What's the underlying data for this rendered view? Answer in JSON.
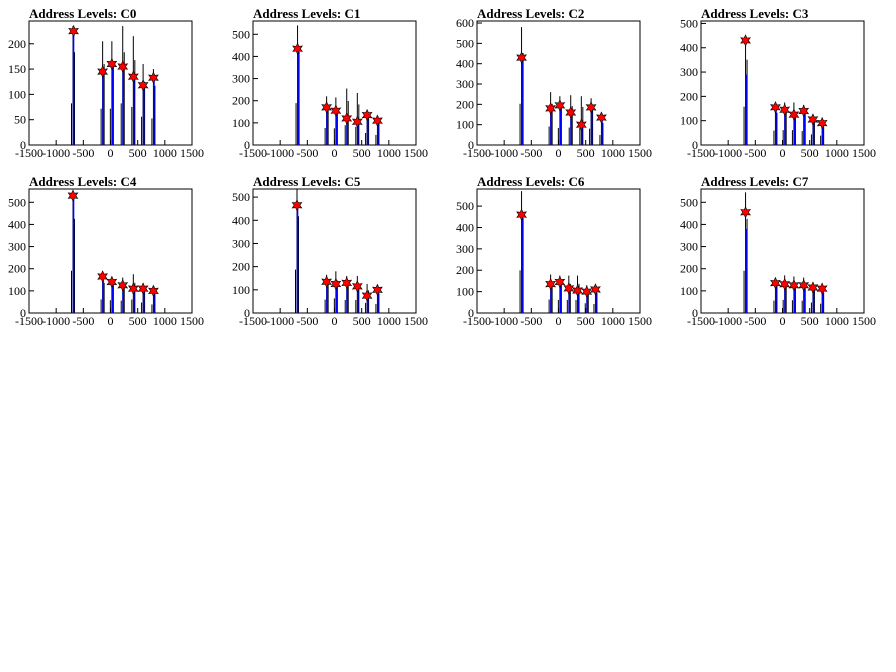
{
  "chart_data": [
    {
      "type": "histogram",
      "title": "Address Levels: C0",
      "xlim": [
        -1500,
        1500
      ],
      "xticks": [
        -1500,
        -1000,
        -500,
        0,
        500,
        1000,
        1500
      ],
      "ylim": [
        0,
        245
      ],
      "yticks": [
        0,
        50,
        100,
        150,
        200
      ],
      "spikes": [
        {
          "x": -690,
          "raw": 235,
          "fit": 230
        },
        {
          "x": -145,
          "raw": 205,
          "fit": 150
        },
        {
          "x": 25,
          "raw": 205,
          "fit": 165
        },
        {
          "x": 225,
          "raw": 235,
          "fit": 160
        },
        {
          "x": 420,
          "raw": 215,
          "fit": 140
        },
        {
          "x": 600,
          "raw": 160,
          "fit": 120
        },
        {
          "x": 790,
          "raw": 150,
          "fit": 140
        }
      ],
      "peaks": [
        {
          "x": -680,
          "y": 225
        },
        {
          "x": -145,
          "y": 145
        },
        {
          "x": 25,
          "y": 160
        },
        {
          "x": 225,
          "y": 155
        },
        {
          "x": 420,
          "y": 135
        },
        {
          "x": 600,
          "y": 118
        },
        {
          "x": 790,
          "y": 133
        }
      ]
    },
    {
      "type": "histogram",
      "title": "Address Levels: C1",
      "xlim": [
        -1500,
        1500
      ],
      "xticks": [
        -1500,
        -1000,
        -500,
        0,
        500,
        1000,
        1500
      ],
      "ylim": [
        0,
        560
      ],
      "yticks": [
        0,
        100,
        200,
        300,
        400,
        500
      ],
      "spikes": [
        {
          "x": -680,
          "raw": 540,
          "fit": 440
        },
        {
          "x": -145,
          "raw": 220,
          "fit": 175
        },
        {
          "x": 25,
          "raw": 215,
          "fit": 165
        },
        {
          "x": 225,
          "raw": 255,
          "fit": 125
        },
        {
          "x": 420,
          "raw": 235,
          "fit": 110
        },
        {
          "x": 600,
          "raw": 155,
          "fit": 140
        },
        {
          "x": 790,
          "raw": 130,
          "fit": 110
        }
      ],
      "peaks": [
        {
          "x": -680,
          "y": 435
        },
        {
          "x": -145,
          "y": 170
        },
        {
          "x": 25,
          "y": 155
        },
        {
          "x": 225,
          "y": 120
        },
        {
          "x": 420,
          "y": 105
        },
        {
          "x": 600,
          "y": 135
        },
        {
          "x": 790,
          "y": 110
        }
      ]
    },
    {
      "type": "histogram",
      "title": "Address Levels: C2",
      "xlim": [
        -1500,
        1500
      ],
      "xticks": [
        -1500,
        -1000,
        -500,
        0,
        500,
        1000,
        1500
      ],
      "ylim": [
        0,
        610
      ],
      "yticks": [
        0,
        100,
        200,
        300,
        400,
        500,
        600
      ],
      "spikes": [
        {
          "x": -680,
          "raw": 580,
          "fit": 440
        },
        {
          "x": -145,
          "raw": 260,
          "fit": 190
        },
        {
          "x": 25,
          "raw": 240,
          "fit": 200
        },
        {
          "x": 225,
          "raw": 245,
          "fit": 170
        },
        {
          "x": 420,
          "raw": 240,
          "fit": 105
        },
        {
          "x": 600,
          "raw": 230,
          "fit": 195
        },
        {
          "x": 790,
          "raw": 140,
          "fit": 140
        }
      ],
      "peaks": [
        {
          "x": -680,
          "y": 430
        },
        {
          "x": -145,
          "y": 180
        },
        {
          "x": 25,
          "y": 195
        },
        {
          "x": 225,
          "y": 160
        },
        {
          "x": 420,
          "y": 100
        },
        {
          "x": 600,
          "y": 185
        },
        {
          "x": 790,
          "y": 135
        }
      ]
    },
    {
      "type": "histogram",
      "title": "Address Levels: C3",
      "xlim": [
        -1500,
        1500
      ],
      "xticks": [
        -1500,
        -1000,
        -500,
        0,
        500,
        1000,
        1500
      ],
      "ylim": [
        0,
        510
      ],
      "yticks": [
        0,
        100,
        200,
        300,
        400,
        500
      ],
      "spikes": [
        {
          "x": -680,
          "raw": 450,
          "fit": 290
        },
        {
          "x": -130,
          "raw": 170,
          "fit": 160
        },
        {
          "x": 40,
          "raw": 175,
          "fit": 150
        },
        {
          "x": 210,
          "raw": 175,
          "fit": 130
        },
        {
          "x": 390,
          "raw": 165,
          "fit": 145
        },
        {
          "x": 560,
          "raw": 125,
          "fit": 110
        },
        {
          "x": 730,
          "raw": 110,
          "fit": 95
        }
      ],
      "peaks": [
        {
          "x": -680,
          "y": 430
        },
        {
          "x": -130,
          "y": 155
        },
        {
          "x": 40,
          "y": 145
        },
        {
          "x": 210,
          "y": 125
        },
        {
          "x": 390,
          "y": 140
        },
        {
          "x": 560,
          "y": 105
        },
        {
          "x": 730,
          "y": 90
        }
      ]
    },
    {
      "type": "histogram",
      "title": "Address Levels: C4",
      "xlim": [
        -1500,
        1500
      ],
      "xticks": [
        -1500,
        -1000,
        -500,
        0,
        500,
        1000,
        1500
      ],
      "ylim": [
        0,
        560
      ],
      "yticks": [
        0,
        100,
        200,
        300,
        400,
        500
      ],
      "spikes": [
        {
          "x": -690,
          "raw": 545,
          "fit": 545
        },
        {
          "x": -145,
          "raw": 175,
          "fit": 170
        },
        {
          "x": 25,
          "raw": 165,
          "fit": 140
        },
        {
          "x": 225,
          "raw": 160,
          "fit": 125
        },
        {
          "x": 420,
          "raw": 175,
          "fit": 110
        },
        {
          "x": 600,
          "raw": 135,
          "fit": 115
        },
        {
          "x": 790,
          "raw": 110,
          "fit": 95
        }
      ],
      "peaks": [
        {
          "x": -690,
          "y": 530
        },
        {
          "x": -145,
          "y": 165
        },
        {
          "x": 25,
          "y": 140
        },
        {
          "x": 225,
          "y": 125
        },
        {
          "x": 420,
          "y": 110
        },
        {
          "x": 600,
          "y": 110
        },
        {
          "x": 790,
          "y": 100
        }
      ]
    },
    {
      "type": "histogram",
      "title": "Address Levels: C5",
      "xlim": [
        -1500,
        1500
      ],
      "xticks": [
        -1500,
        -1000,
        -500,
        0,
        500,
        1000,
        1500
      ],
      "ylim": [
        0,
        535
      ],
      "yticks": [
        0,
        100,
        200,
        300,
        400,
        500
      ],
      "spikes": [
        {
          "x": -690,
          "raw": 535,
          "fit": 475
        },
        {
          "x": -145,
          "raw": 165,
          "fit": 135
        },
        {
          "x": 25,
          "raw": 180,
          "fit": 130
        },
        {
          "x": 225,
          "raw": 160,
          "fit": 130
        },
        {
          "x": 420,
          "raw": 160,
          "fit": 115
        },
        {
          "x": 600,
          "raw": 125,
          "fit": 80
        },
        {
          "x": 790,
          "raw": 110,
          "fit": 100
        }
      ],
      "peaks": [
        {
          "x": -690,
          "y": 465
        },
        {
          "x": -145,
          "y": 135
        },
        {
          "x": 25,
          "y": 125
        },
        {
          "x": 225,
          "y": 130
        },
        {
          "x": 420,
          "y": 115
        },
        {
          "x": 600,
          "y": 75
        },
        {
          "x": 790,
          "y": 100
        }
      ]
    },
    {
      "type": "histogram",
      "title": "Address Levels: C6",
      "xlim": [
        -1500,
        1500
      ],
      "xticks": [
        -1500,
        -1000,
        -500,
        0,
        500,
        1000,
        1500
      ],
      "ylim": [
        0,
        580
      ],
      "yticks": [
        0,
        100,
        200,
        300,
        400,
        500
      ],
      "spikes": [
        {
          "x": -680,
          "raw": 570,
          "fit": 470
        },
        {
          "x": -145,
          "raw": 180,
          "fit": 140
        },
        {
          "x": 25,
          "raw": 175,
          "fit": 150
        },
        {
          "x": 190,
          "raw": 175,
          "fit": 120
        },
        {
          "x": 350,
          "raw": 175,
          "fit": 110
        },
        {
          "x": 520,
          "raw": 130,
          "fit": 105
        },
        {
          "x": 680,
          "raw": 120,
          "fit": 115
        }
      ],
      "peaks": [
        {
          "x": -680,
          "y": 460
        },
        {
          "x": -145,
          "y": 135
        },
        {
          "x": 25,
          "y": 145
        },
        {
          "x": 190,
          "y": 115
        },
        {
          "x": 350,
          "y": 105
        },
        {
          "x": 520,
          "y": 100
        },
        {
          "x": 680,
          "y": 110
        }
      ]
    },
    {
      "type": "histogram",
      "title": "Address Levels: C7",
      "xlim": [
        -1500,
        1500
      ],
      "xticks": [
        -1500,
        -1000,
        -500,
        0,
        500,
        1000,
        1500
      ],
      "ylim": [
        0,
        560
      ],
      "yticks": [
        0,
        100,
        200,
        300,
        400,
        500
      ],
      "spikes": [
        {
          "x": -680,
          "raw": 545,
          "fit": 380
        },
        {
          "x": -130,
          "raw": 160,
          "fit": 140
        },
        {
          "x": 40,
          "raw": 170,
          "fit": 140
        },
        {
          "x": 210,
          "raw": 165,
          "fit": 130
        },
        {
          "x": 390,
          "raw": 160,
          "fit": 130
        },
        {
          "x": 560,
          "raw": 135,
          "fit": 125
        },
        {
          "x": 730,
          "raw": 120,
          "fit": 110
        }
      ],
      "peaks": [
        {
          "x": -680,
          "y": 455
        },
        {
          "x": -130,
          "y": 135
        },
        {
          "x": 40,
          "y": 130
        },
        {
          "x": 210,
          "y": 125
        },
        {
          "x": 390,
          "y": 125
        },
        {
          "x": 560,
          "y": 115
        },
        {
          "x": 730,
          "y": 110
        }
      ]
    }
  ],
  "colors": {
    "raw": "#000000",
    "fit": "#0000ff",
    "peak_fill": "#ff0000",
    "axis": "#000000"
  }
}
